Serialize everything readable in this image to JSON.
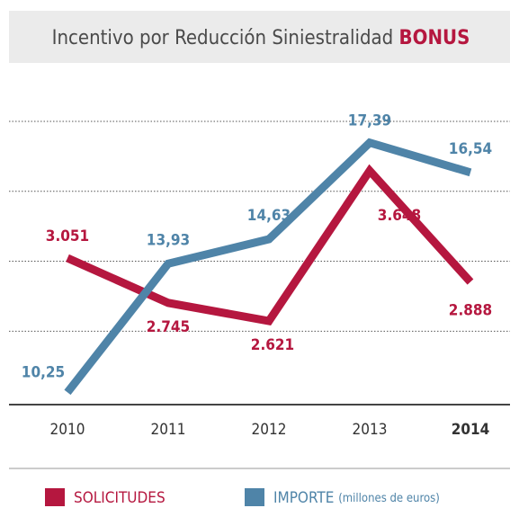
{
  "chart_data": {
    "type": "line",
    "title": "Incentivo por Reducción Siniestralidad",
    "title_emphasis": "BONUS",
    "categories": [
      "2010",
      "2011",
      "2012",
      "2013",
      "2014"
    ],
    "emphasized_category_index": 4,
    "series": [
      {
        "name": "SOLICITUDES",
        "color": "#b5173f",
        "axis": "y2",
        "values": [
          3051,
          2745,
          2621,
          3648,
          2888
        ],
        "value_labels": [
          "3.051",
          "2.745",
          "2.621",
          "3.648",
          "2.888"
        ]
      },
      {
        "name": "IMPORTE",
        "color": "#4f84a8",
        "values": [
          10.25,
          13.93,
          14.63,
          17.39,
          16.54
        ],
        "value_labels": [
          "10,25",
          "13,93",
          "14,63",
          "17,39",
          "16,54"
        ]
      }
    ],
    "legend_note": "(millones de euros)",
    "ylim": [
      9.9,
      18.9
    ],
    "yticks": [
      12,
      14,
      16,
      18
    ],
    "ytick_labels": false,
    "y2lim": [
      2050,
      4200
    ],
    "grid": true
  }
}
